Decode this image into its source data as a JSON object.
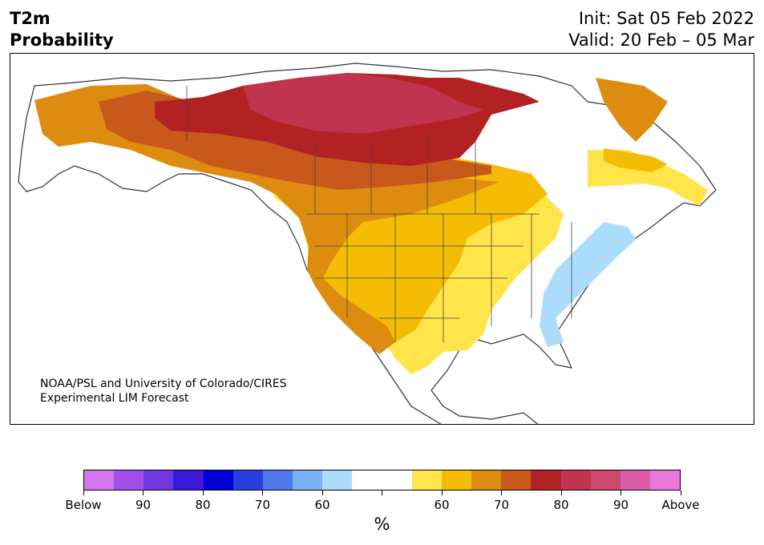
{
  "title_left": [
    "T2m",
    "Probability"
  ],
  "title_right": [
    "Init: Sat 05 Feb 2022",
    "Valid: 20 Feb – 05 Mar"
  ],
  "credit": [
    "NOAA/PSL and University of Colorado/CIRES",
    "Experimental LIM Forecast"
  ],
  "colorbar": {
    "colors": [
      "#d176ee",
      "#a050e6",
      "#7038e0",
      "#3a1ad8",
      "#0000d4",
      "#2a3ee0",
      "#5078e8",
      "#78b2f4",
      "#acdcfc",
      "#ffffff",
      "#ffffff",
      "#ffe44a",
      "#f4bc04",
      "#de8c10",
      "#c8581c",
      "#b22222",
      "#c03450",
      "#cc4870",
      "#d85ca8",
      "#e878dc"
    ],
    "tick_labels": [
      "Below",
      "90",
      "80",
      "70",
      "60",
      "",
      "60",
      "70",
      "80",
      "90",
      "Above"
    ],
    "unit": "%"
  },
  "map_legend": {
    "above_normal_colors": [
      "#ffe44a",
      "#f4bc04",
      "#de8c10",
      "#c8581c",
      "#b22222",
      "#c03450"
    ],
    "below_normal_colors": [
      "#acdcfc"
    ]
  }
}
